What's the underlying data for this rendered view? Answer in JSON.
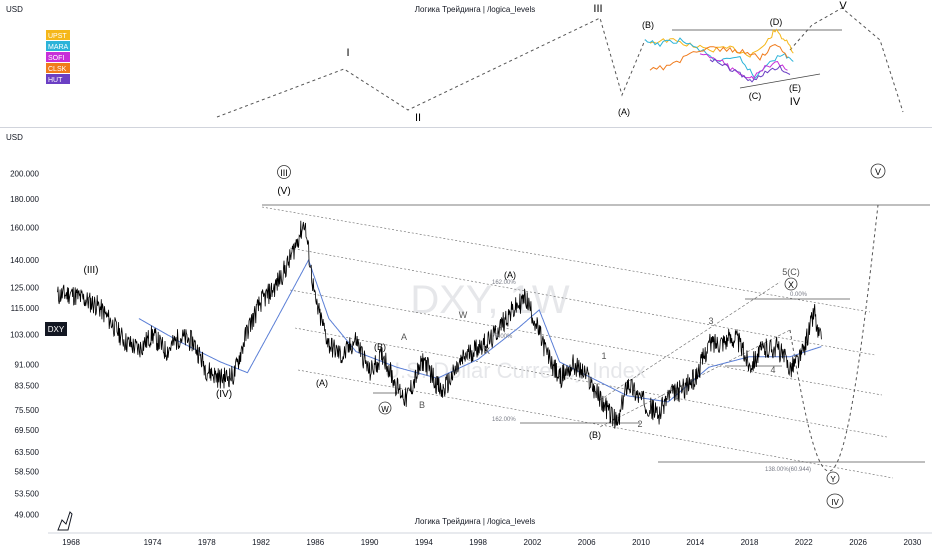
{
  "top_pane": {
    "currency": "USD",
    "watermark": "Логика Трейдинга | /logica_levels",
    "legend": [
      {
        "label": "UPST",
        "color": "#f5b71a"
      },
      {
        "label": "MARA",
        "color": "#2bb3d9"
      },
      {
        "label": "SOFI",
        "color": "#c72fd9"
      },
      {
        "label": "CLSK",
        "color": "#f07b1c"
      },
      {
        "label": "HUT",
        "color": "#6b3fc4"
      }
    ],
    "wave_labels": [
      {
        "text": "I"
      },
      {
        "text": "II"
      },
      {
        "text": "III"
      },
      {
        "text": "(A)"
      },
      {
        "text": "(B)"
      },
      {
        "text": "(C)"
      },
      {
        "text": "(D)"
      },
      {
        "text": "(E)"
      },
      {
        "text": "IV"
      },
      {
        "text": "V"
      }
    ]
  },
  "chart_data": {
    "type": "line",
    "ticker": "DXY",
    "watermark_symbol": "DXY, 1W",
    "watermark_name": "U.S. Dollar Currency Index",
    "bottom_watermark": "Логика Трейдинга | /logica_levels",
    "currency": "USD",
    "y_scale": "log",
    "ylim": [
      46,
      225
    ],
    "xlim": [
      1966.3,
      2031.3
    ],
    "y_ticks": [
      "200.000",
      "180.000",
      "160.000",
      "140.000",
      "125.000",
      "115.000",
      "103.000",
      "91.000",
      "83.500",
      "75.500",
      "69.500",
      "63.500",
      "58.500",
      "53.500",
      "49.000"
    ],
    "x_ticks": [
      "1968",
      "1974",
      "1978",
      "1982",
      "1986",
      "1990",
      "1994",
      "1998",
      "2002",
      "2006",
      "2010",
      "2014",
      "2018",
      "2022",
      "2026",
      "2030"
    ],
    "price_label": "DXY",
    "price_series": {
      "x": [
        1967.0,
        1968.0,
        1969.0,
        1970.0,
        1971.0,
        1972.0,
        1973.0,
        1974.0,
        1975.0,
        1976.0,
        1977.0,
        1978.0,
        1979.0,
        1980.0,
        1981.0,
        1982.0,
        1983.0,
        1984.0,
        1985.2,
        1986.0,
        1987.0,
        1988.0,
        1989.0,
        1990.0,
        1991.0,
        1992.0,
        1992.7,
        1994.0,
        1995.3,
        1996.0,
        1997.0,
        1998.0,
        1999.0,
        2000.0,
        2001.5,
        2002.0,
        2003.0,
        2004.0,
        2005.0,
        2006.0,
        2007.0,
        2008.3,
        2009.0,
        2010.0,
        2011.3,
        2012.0,
        2013.0,
        2014.0,
        2015.0,
        2017.0,
        2018.0,
        2019.0,
        2020.0,
        2021.0,
        2021.8,
        2022.0,
        2022.8,
        2023.0,
        2023.3
      ],
      "y": [
        121,
        122,
        119,
        116,
        108,
        100,
        97,
        103,
        96,
        102,
        100,
        89,
        86,
        87,
        105,
        118,
        125,
        138,
        164,
        118,
        99,
        94,
        101,
        88,
        95,
        83,
        79,
        93,
        81,
        86,
        94,
        98,
        101,
        110,
        120,
        112,
        96,
        86,
        91,
        87,
        79,
        71,
        85,
        79,
        74,
        80,
        82,
        86,
        99,
        102,
        91,
        97,
        98,
        90,
        94,
        97,
        114,
        104,
        101
      ]
    },
    "ma_series": {
      "x": [
        1973.0,
        1976.0,
        1979.0,
        1981.0,
        1983.0,
        1985.5,
        1987.0,
        1989.0,
        1992.0,
        1995.0,
        1998.0,
        2001.0,
        2002.5,
        2004.0,
        2006.0,
        2009.0,
        2012.0,
        2015.0,
        2018.0,
        2021.0,
        2023.3
      ],
      "y": [
        110,
        100,
        92,
        88,
        108,
        140,
        110,
        96,
        90,
        86,
        93,
        106,
        114,
        92,
        87,
        80,
        78,
        90,
        94,
        94,
        98
      ]
    },
    "wave_labels": [
      "(III)",
      "III",
      "(V)",
      "(IV)",
      "(A)",
      "(B)",
      "A",
      "B",
      "W",
      "X",
      "(A)",
      "(B)",
      "1",
      "2",
      "3",
      "4",
      "5(C)",
      "X",
      "W",
      "Y",
      "IV",
      "V"
    ],
    "fib_labels": [
      "162.00%",
      "78.00%",
      "162.00%",
      "0.00%",
      "138.00%(60.944)"
    ]
  }
}
